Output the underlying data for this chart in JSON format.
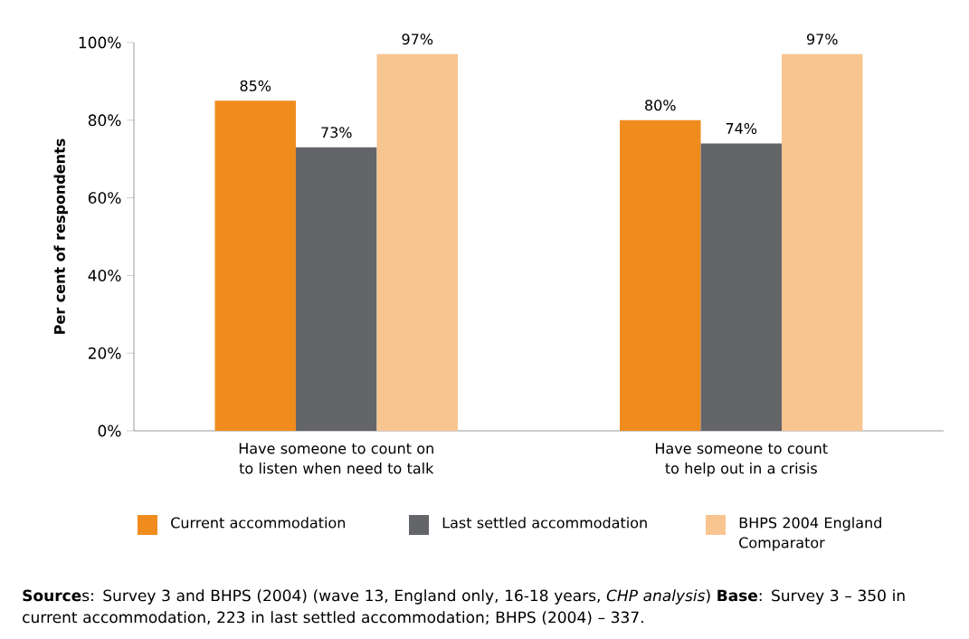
{
  "chart_data": {
    "type": "bar",
    "ylabel": "Per cent of respondents",
    "categories": [
      "Have someone to count on to listen when need to talk",
      "Have someone to count to help out in a crisis"
    ],
    "series": [
      {
        "name": "Current accommodation",
        "color": "#f08c1e",
        "values": [
          85,
          80
        ],
        "value_labels": [
          "85%",
          "80%"
        ]
      },
      {
        "name": "Last settled accommodation",
        "color": "#646569",
        "values": [
          73,
          74
        ],
        "value_labels": [
          "73%",
          "74%"
        ]
      },
      {
        "name": "BHPS 2004 England Comparator",
        "color": "#f8c591",
        "values": [
          97,
          97
        ],
        "value_labels": [
          "97%",
          "97%"
        ]
      }
    ],
    "ylim": [
      0,
      100
    ],
    "yticks": [
      {
        "value": 0,
        "label": "0%"
      },
      {
        "value": 20,
        "label": "20%"
      },
      {
        "value": 40,
        "label": "40%"
      },
      {
        "value": 60,
        "label": "60%"
      },
      {
        "value": 80,
        "label": "80%"
      },
      {
        "value": 100,
        "label": "100%"
      }
    ],
    "grid": false,
    "legend": "bottom",
    "annotations": [
      "**Source**s: Survey 3 and BHPS (2004) (wave 13, England only, 16-18 years, *CHP analysis*) **Base**: Survey 3 – 350 in current accommodation, 223 in last settled accommodation; BHPS (2004) – 337."
    ]
  }
}
